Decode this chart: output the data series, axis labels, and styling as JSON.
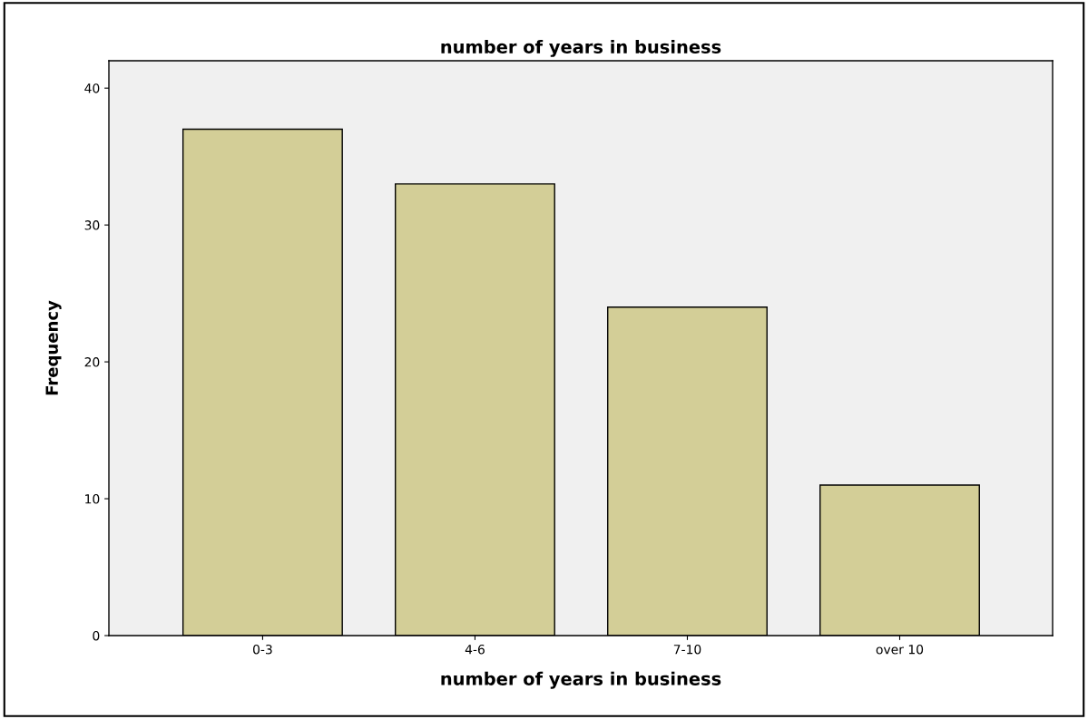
{
  "chart_data": {
    "type": "bar",
    "title": "number of years in business",
    "xlabel": "number of years in business",
    "ylabel": "Frequency",
    "categories": [
      "0-3",
      "4-6",
      "7-10",
      "over 10"
    ],
    "values": [
      37,
      33,
      24,
      11
    ],
    "color": "#d3ce97",
    "ylim": [
      0,
      42
    ],
    "yticks": [
      0,
      10,
      20,
      30,
      40
    ],
    "grid": false
  }
}
